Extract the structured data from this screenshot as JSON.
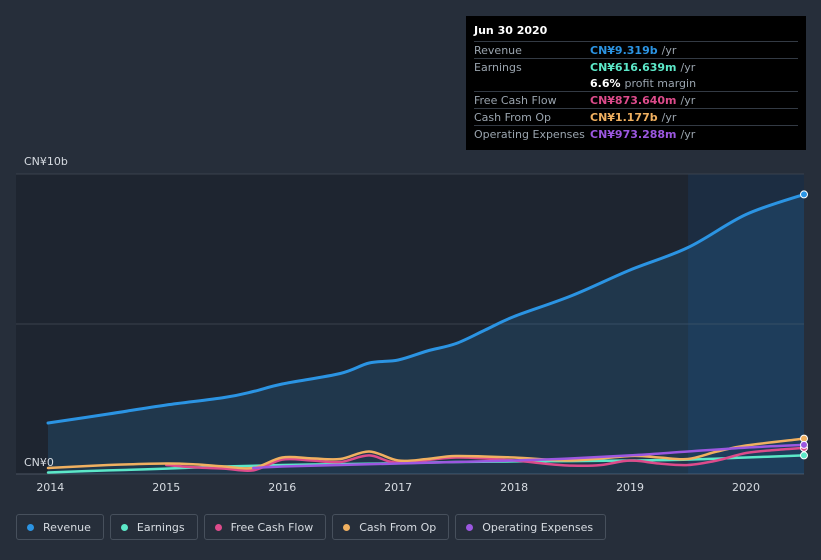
{
  "tooltip": {
    "date": "Jun 30 2020",
    "rows": [
      {
        "label": "Revenue",
        "value": "CN¥9.319b",
        "unit": "/yr",
        "color": "#2b94e3"
      },
      {
        "label": "Earnings",
        "value": "CN¥616.639m",
        "unit": "/yr",
        "color": "#5ce8c8"
      },
      {
        "label": "Free Cash Flow",
        "value": "CN¥873.640m",
        "unit": "/yr",
        "color": "#dd4b8b"
      },
      {
        "label": "Cash From Op",
        "value": "CN¥1.177b",
        "unit": "/yr",
        "color": "#f0b060"
      },
      {
        "label": "Operating Expenses",
        "value": "CN¥973.288m",
        "unit": "/yr",
        "color": "#9b57e0"
      }
    ],
    "profit_margin": {
      "value": "6.6%",
      "label": "profit margin"
    }
  },
  "legend": [
    {
      "label": "Revenue",
      "color": "#2b94e3"
    },
    {
      "label": "Earnings",
      "color": "#5ce8c8"
    },
    {
      "label": "Free Cash Flow",
      "color": "#dd4b8b"
    },
    {
      "label": "Cash From Op",
      "color": "#f0b060"
    },
    {
      "label": "Operating Expenses",
      "color": "#9b57e0"
    }
  ],
  "chart_data": {
    "type": "line",
    "title": "",
    "xlabel": "",
    "ylabel": "",
    "xlim": [
      2013.98,
      2020.5
    ],
    "ylim": [
      0,
      10
    ],
    "y_tick_labels": [
      {
        "value": 10,
        "label": "CN¥10b"
      },
      {
        "value": 0,
        "label": "CN¥0"
      }
    ],
    "x_ticks": [
      2014,
      2015,
      2016,
      2017,
      2018,
      2019,
      2020
    ],
    "x_tick_labels": [
      "2014",
      "2015",
      "2016",
      "2017",
      "2018",
      "2019",
      "2020"
    ],
    "highlight_start": 2019.5,
    "series": [
      {
        "name": "Revenue",
        "color": "#2b94e3",
        "area": true,
        "x": [
          2013.98,
          2014.5,
          2015.0,
          2015.5,
          2015.75,
          2016.0,
          2016.5,
          2016.75,
          2017.0,
          2017.25,
          2017.5,
          2017.75,
          2018.0,
          2018.5,
          2019.0,
          2019.5,
          2020.0,
          2020.5
        ],
        "y": [
          1.7,
          2.0,
          2.3,
          2.55,
          2.75,
          3.0,
          3.35,
          3.7,
          3.8,
          4.1,
          4.35,
          4.8,
          5.25,
          5.95,
          6.8,
          7.55,
          8.65,
          9.32
        ]
      },
      {
        "name": "Earnings",
        "color": "#5ce8c8",
        "area": false,
        "x": [
          2013.98,
          2014.5,
          2015.0,
          2015.5,
          2016.0,
          2016.5,
          2017.0,
          2017.5,
          2018.0,
          2018.5,
          2019.0,
          2019.5,
          2020.0,
          2020.5
        ],
        "y": [
          0.05,
          0.12,
          0.18,
          0.25,
          0.3,
          0.33,
          0.36,
          0.4,
          0.42,
          0.43,
          0.45,
          0.48,
          0.55,
          0.62
        ]
      },
      {
        "name": "Free Cash Flow",
        "color": "#dd4b8b",
        "area": false,
        "x": [
          2015.0,
          2015.25,
          2015.5,
          2015.75,
          2016.0,
          2016.25,
          2016.5,
          2016.75,
          2017.0,
          2017.5,
          2018.0,
          2018.25,
          2018.5,
          2018.75,
          2019.0,
          2019.25,
          2019.5,
          2019.75,
          2020.0,
          2020.25,
          2020.5
        ],
        "y": [
          0.3,
          0.22,
          0.18,
          0.12,
          0.48,
          0.45,
          0.4,
          0.62,
          0.38,
          0.55,
          0.45,
          0.35,
          0.28,
          0.3,
          0.45,
          0.35,
          0.3,
          0.45,
          0.7,
          0.8,
          0.87
        ]
      },
      {
        "name": "Cash From Op",
        "color": "#f0b060",
        "area": false,
        "x": [
          2013.98,
          2014.5,
          2015.0,
          2015.25,
          2015.5,
          2015.75,
          2016.0,
          2016.25,
          2016.5,
          2016.75,
          2017.0,
          2017.25,
          2017.5,
          2018.0,
          2018.5,
          2019.0,
          2019.25,
          2019.5,
          2019.75,
          2020.0,
          2020.5
        ],
        "y": [
          0.2,
          0.3,
          0.35,
          0.32,
          0.25,
          0.2,
          0.55,
          0.52,
          0.5,
          0.75,
          0.45,
          0.5,
          0.6,
          0.55,
          0.45,
          0.6,
          0.55,
          0.5,
          0.75,
          0.95,
          1.18
        ]
      },
      {
        "name": "Operating Expenses",
        "color": "#9b57e0",
        "area": false,
        "x": [
          2015.75,
          2016.0,
          2016.5,
          2017.0,
          2017.5,
          2018.0,
          2018.5,
          2019.0,
          2019.5,
          2020.0,
          2020.5
        ],
        "y": [
          0.2,
          0.25,
          0.3,
          0.35,
          0.4,
          0.45,
          0.52,
          0.62,
          0.75,
          0.88,
          0.97
        ]
      }
    ]
  }
}
